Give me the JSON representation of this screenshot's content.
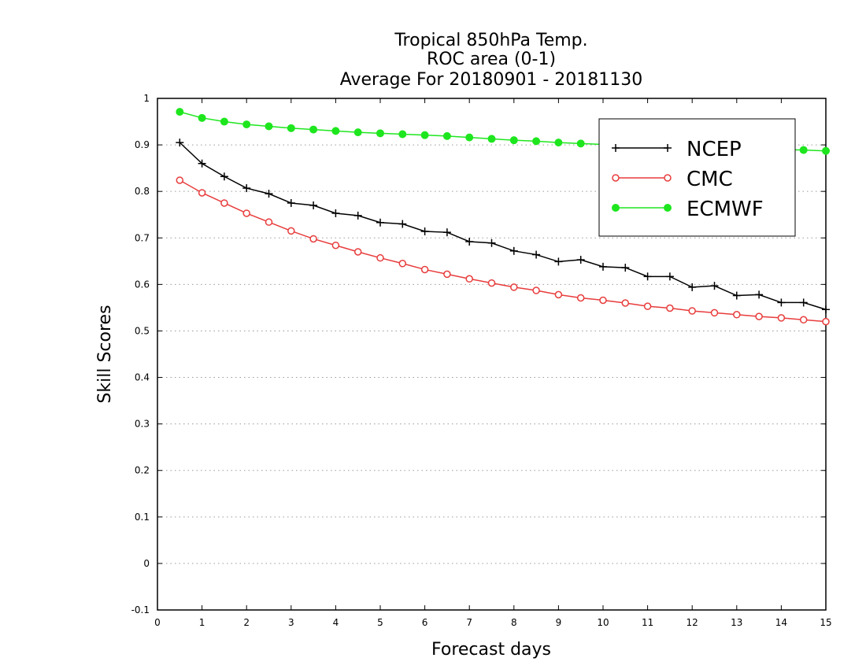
{
  "chart_data": {
    "type": "line",
    "title": [
      "Tropical 850hPa Temp.",
      "ROC area (0-1)",
      "Average For 20180901 - 20181130"
    ],
    "xlabel": "Forecast days",
    "ylabel": "Skill Scores",
    "xlim": [
      0,
      15
    ],
    "ylim": [
      -0.1,
      1
    ],
    "xticks": [
      "0",
      "1",
      "2",
      "3",
      "4",
      "5",
      "6",
      "7",
      "8",
      "9",
      "10",
      "11",
      "12",
      "13",
      "14",
      "15"
    ],
    "yticks": [
      "-0.1",
      "0",
      "0.1",
      "0.2",
      "0.3",
      "0.4",
      "0.5",
      "0.6",
      "0.7",
      "0.8",
      "0.9",
      "1"
    ],
    "grid": "horizontal-dotted",
    "legend_position": "top-right",
    "x": [
      0.5,
      1,
      1.5,
      2,
      2.5,
      3,
      3.5,
      4,
      4.5,
      5,
      5.5,
      6,
      6.5,
      7,
      7.5,
      8,
      8.5,
      9,
      9.5,
      10,
      10.5,
      11,
      11.5,
      12,
      12.5,
      13,
      13.5,
      14,
      14.5,
      15
    ],
    "series": [
      {
        "name": "NCEP",
        "color": "#000000",
        "marker": "plus",
        "values": [
          0.905,
          0.86,
          0.832,
          0.807,
          0.795,
          0.775,
          0.77,
          0.753,
          0.748,
          0.733,
          0.73,
          0.714,
          0.712,
          0.692,
          0.689,
          0.672,
          0.664,
          0.649,
          0.653,
          0.638,
          0.636,
          0.617,
          0.617,
          0.594,
          0.597,
          0.576,
          0.578,
          0.561,
          0.561,
          0.546
        ]
      },
      {
        "name": "CMC",
        "color": "#e83c3c",
        "marker": "open-circle",
        "values": [
          0.824,
          0.797,
          0.775,
          0.753,
          0.734,
          0.715,
          0.698,
          0.684,
          0.67,
          0.657,
          0.645,
          0.632,
          0.622,
          0.612,
          0.603,
          0.594,
          0.587,
          0.578,
          0.571,
          0.566,
          0.56,
          0.553,
          0.549,
          0.543,
          0.539,
          0.535,
          0.531,
          0.528,
          0.524,
          0.52
        ]
      },
      {
        "name": "ECMWF",
        "color": "#1ee61e",
        "marker": "filled-circle",
        "values": [
          0.971,
          0.958,
          0.95,
          0.944,
          0.94,
          0.936,
          0.933,
          0.93,
          0.927,
          0.925,
          0.923,
          0.921,
          0.919,
          0.916,
          0.913,
          0.91,
          0.908,
          0.905,
          0.903,
          0.901,
          0.899,
          0.897,
          0.896,
          0.894,
          0.893,
          0.892,
          0.891,
          0.89,
          0.889,
          0.887
        ]
      }
    ]
  }
}
